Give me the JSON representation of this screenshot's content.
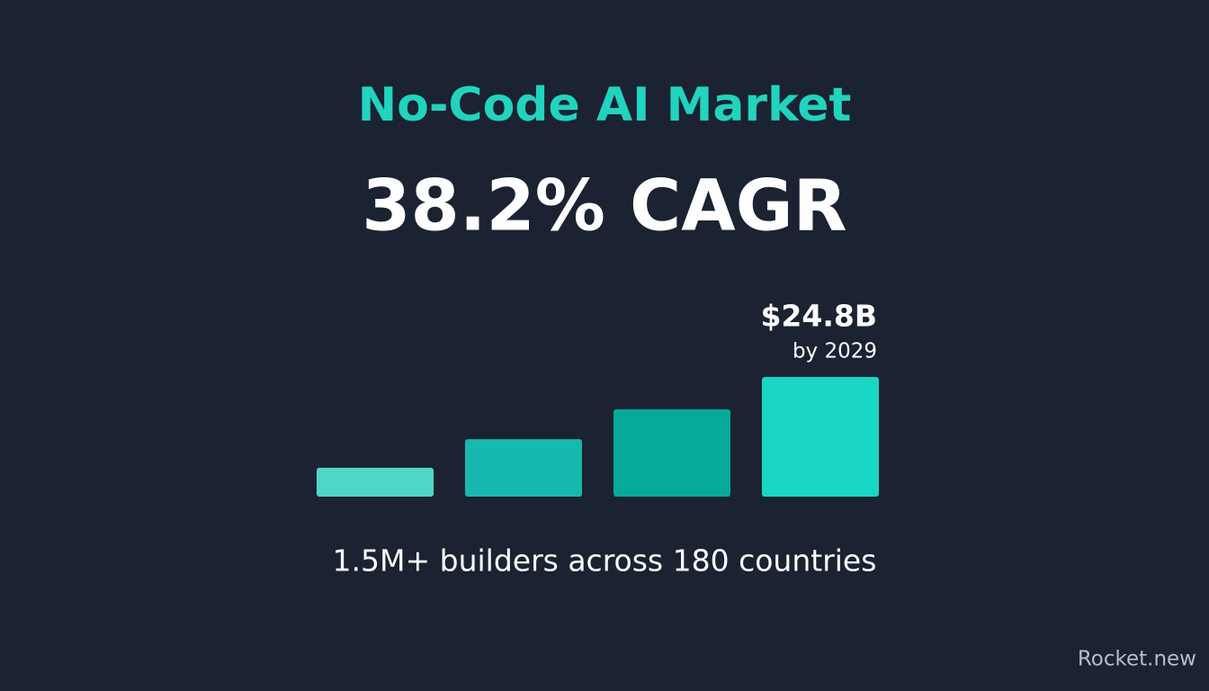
{
  "header": {
    "title": "No-Code AI Market",
    "headline": "38.2% CAGR"
  },
  "chart_data": {
    "type": "bar",
    "categories": [
      null,
      null,
      null,
      null
    ],
    "values": [
      6.0,
      11.9,
      18.1,
      24.8
    ],
    "value_labels": [
      null,
      null,
      null,
      "$24.8B"
    ],
    "annotation": "by 2029",
    "colors": [
      "#4fd6c8",
      "#17b8b0",
      "#07a99b",
      "#1ad6c4"
    ]
  },
  "footer": {
    "text": "1.5M+ builders across 180 countries"
  },
  "watermark": "Rocket.new"
}
